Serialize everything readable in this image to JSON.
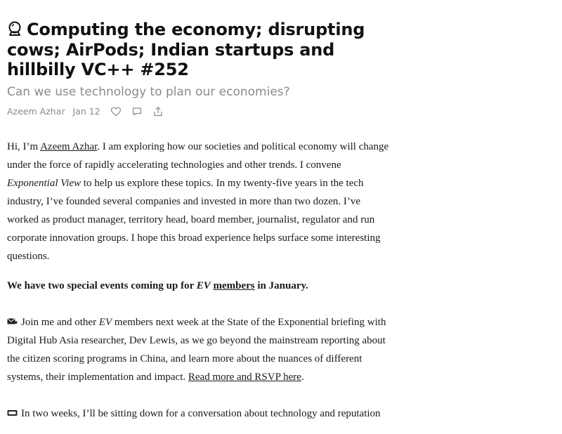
{
  "post": {
    "title": "Computing the economy; disrupting cows; AirPods; Indian startups and hillbilly VC++ #252",
    "title_icon": "crystal-ball-icon",
    "subtitle": "Can we use technology to plan our economies?",
    "author": "Azeem Azhar",
    "date": "Jan 12",
    "actions": [
      "heart-icon",
      "comment-icon",
      "share-icon"
    ]
  },
  "intro": {
    "p1_a": "Hi, I’m ",
    "p1_link": "Azeem Azhar",
    "p1_b": ". I am exploring how our societies and political economy will change under the force of rapidly accelerating technologies and other trends. I convene ",
    "p1_em": "Exponential View",
    "p1_c": " to help us explore these topics. In my twenty-five years in the tech industry, I’ve founded several companies and invested in more than two dozen. I’ve worked as product manager, territory head, board member, journalist, regulator and run corporate innovation groups. I hope this broad experience helps surface some interesting questions."
  },
  "events": {
    "heading_a": "We have two special events coming up for ",
    "heading_em": "EV",
    "heading_b": " ",
    "heading_link": "members",
    "heading_c": " in January.",
    "e1_icon": "envelope-heart-icon",
    "e1_a": "Join me and other ",
    "e1_em": "EV",
    "e1_b": " members next week at the State of the Exponential briefing with Digital Hub Asia researcher, Dev Lewis, as we go beyond the mainstream reporting about the citizen scoring programs in China, and learn more about the nuances of different systems, their implementation and impact. ",
    "e1_link": "Read more and RSVP here",
    "e1_c": ".",
    "e2_icon": "laptop-icon",
    "e2_a": "In two weeks, I’ll be sitting down for a conversation about technology and reputation"
  },
  "colors": {
    "text": "#1a1a1a",
    "muted": "#8a8a8a",
    "title": "#111111"
  }
}
